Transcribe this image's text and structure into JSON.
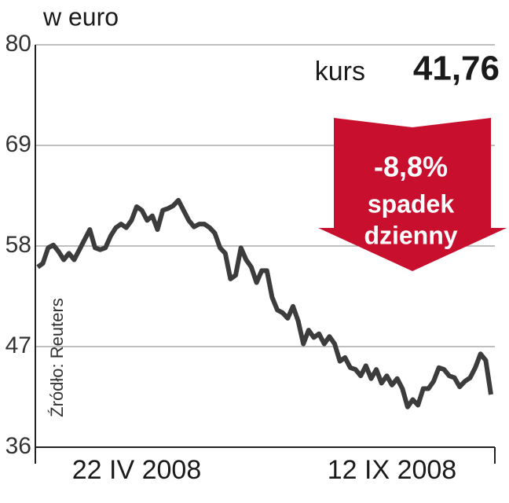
{
  "chart_data": {
    "type": "line",
    "title": "w euro",
    "source": "Źródło: Reuters",
    "annotations": {
      "price_label": "kurs",
      "price": "41,76",
      "change": "-8,8%",
      "change_line1": "spadek",
      "change_line2": "dzienny"
    },
    "categories": [
      null,
      null,
      null,
      null,
      null,
      null,
      null,
      null,
      null,
      null,
      null,
      null,
      null,
      null,
      null,
      null,
      null,
      null,
      null,
      "22 IV 2008",
      null,
      null,
      null,
      null,
      null,
      null,
      null,
      null,
      null,
      null,
      null,
      null,
      null,
      null,
      null,
      null,
      null,
      null,
      null,
      null,
      null,
      null,
      null,
      null,
      null,
      null,
      null,
      null,
      null,
      null,
      null,
      null,
      null,
      null,
      null,
      null,
      null,
      null,
      null,
      null,
      null,
      null,
      null,
      null,
      null,
      null,
      null,
      null,
      "12 IX 2008",
      null,
      null,
      null,
      null,
      null,
      null,
      null,
      null,
      null,
      null,
      null,
      null,
      null,
      null,
      null,
      null,
      null,
      null,
      null
    ],
    "series": [
      {
        "color": "#3c3c3c",
        "values": [
          55.7,
          56.1,
          57.8,
          58.1,
          57.4,
          56.5,
          57.2,
          56.5,
          57.6,
          58.7,
          59.8,
          57.8,
          57.6,
          57.8,
          59.1,
          60.0,
          60.4,
          60.0,
          60.8,
          62.3,
          61.9,
          60.8,
          61.3,
          59.8,
          61.9,
          62.1,
          62.4,
          63.0,
          61.9,
          60.8,
          60.1,
          60.4,
          60.4,
          60.0,
          59.4,
          57.8,
          57.2,
          54.4,
          54.8,
          57.8,
          56.5,
          55.7,
          54.0,
          55.3,
          55.3,
          52.4,
          51.0,
          50.7,
          50.1,
          51.4,
          49.8,
          47.3,
          48.8,
          48.0,
          48.4,
          47.3,
          48.1,
          47.3,
          45.4,
          45.8,
          44.7,
          44.5,
          43.8,
          44.9,
          43.5,
          44.5,
          43.0,
          43.8,
          42.8,
          43.5,
          42.4,
          40.4,
          41.2,
          40.6,
          42.4,
          42.4,
          43.2,
          44.7,
          44.5,
          43.8,
          43.6,
          42.6,
          43.2,
          43.6,
          44.7,
          46.2,
          45.5,
          41.76
        ]
      }
    ],
    "ylim": [
      36,
      80
    ],
    "yticks": [
      80,
      69,
      58,
      47,
      36
    ],
    "grid": true
  }
}
